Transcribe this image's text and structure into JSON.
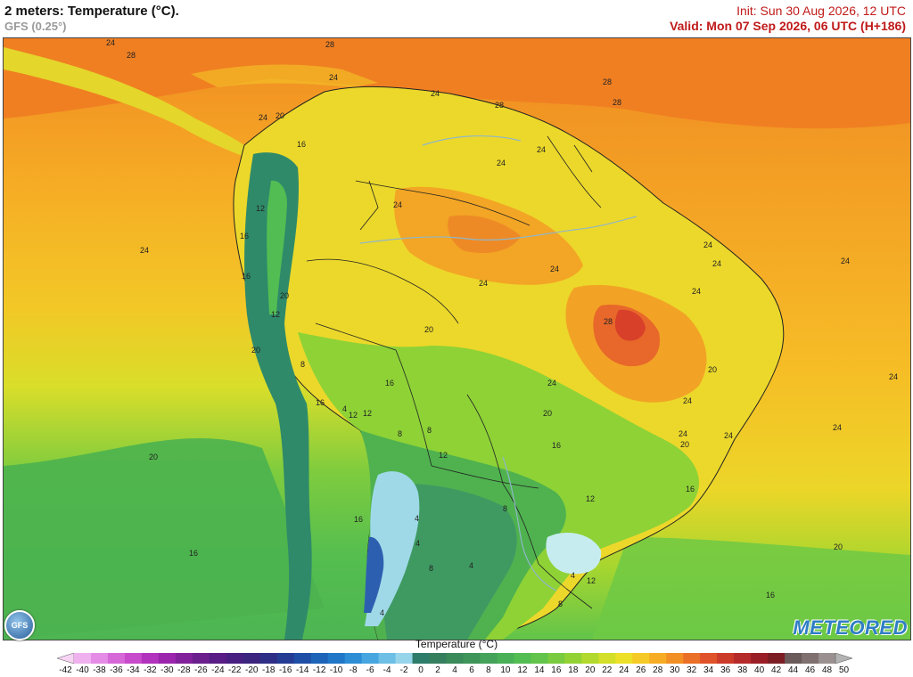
{
  "header": {
    "title": "2 meters: Temperature (°C).",
    "model": "GFS (0.25°)",
    "init": "Init: Sun 30 Aug 2026, 12 UTC",
    "valid": "Valid: Mon 07 Sep 2026, 06 UTC (H+186)"
  },
  "logos": {
    "gfs": "GFS",
    "brand": "METEORED"
  },
  "legend": {
    "title": "Temperature (°C)",
    "ticks": [
      "-42",
      "-40",
      "-38",
      "-36",
      "-34",
      "-32",
      "-30",
      "-28",
      "-26",
      "-24",
      "-22",
      "-20",
      "-18",
      "-16",
      "-14",
      "-12",
      "-10",
      "-8",
      "-6",
      "-4",
      "-2",
      "0",
      "2",
      "4",
      "6",
      "8",
      "10",
      "12",
      "14",
      "16",
      "18",
      "20",
      "22",
      "24",
      "26",
      "28",
      "30",
      "32",
      "34",
      "36",
      "38",
      "40",
      "42",
      "44",
      "46",
      "48",
      "50"
    ],
    "colors": [
      "#f7d4f4",
      "#efb2ee",
      "#e58de6",
      "#d768d8",
      "#c84bcb",
      "#b233bc",
      "#9b26ad",
      "#82219c",
      "#6a1f8d",
      "#581d86",
      "#482081",
      "#3c257e",
      "#2f2e86",
      "#243c93",
      "#1f4ea6",
      "#1d63b8",
      "#2077c8",
      "#2d8ed6",
      "#47a6e0",
      "#6dbfe6",
      "#97d5ea",
      "#2e7d6a",
      "#357f5f",
      "#3a8a5a",
      "#3f9559",
      "#44a25a",
      "#49b058",
      "#52bd52",
      "#62c44a",
      "#7acb3f",
      "#93d235",
      "#b2d92d",
      "#d3df28",
      "#ece028",
      "#f6ca26",
      "#f6ad25",
      "#f28f25",
      "#ea6f27",
      "#e05229",
      "#cc3a2a",
      "#b52a2a",
      "#9a1e26",
      "#7c1d24",
      "#6b5a5a",
      "#807070",
      "#9a9090",
      "#b3b3b3"
    ]
  },
  "map": {
    "ocean_sst_labels": [
      {
        "text": "28"
      },
      {
        "text": "28"
      },
      {
        "text": "28"
      },
      {
        "text": "28"
      },
      {
        "text": "28"
      },
      {
        "text": "24"
      },
      {
        "text": "24"
      },
      {
        "text": "24"
      },
      {
        "text": "24"
      },
      {
        "text": "24"
      },
      {
        "text": "20"
      },
      {
        "text": "20"
      },
      {
        "text": "20"
      },
      {
        "text": "16"
      },
      {
        "text": "16"
      },
      {
        "text": "16"
      },
      {
        "text": "12"
      }
    ],
    "land_labels": [
      {
        "text": "24"
      },
      {
        "text": "24"
      },
      {
        "text": "20"
      },
      {
        "text": "24"
      },
      {
        "text": "16"
      },
      {
        "text": "24"
      },
      {
        "text": "24"
      },
      {
        "text": "24"
      },
      {
        "text": "12"
      },
      {
        "text": "16"
      },
      {
        "text": "24"
      },
      {
        "text": "24"
      },
      {
        "text": "16"
      },
      {
        "text": "20"
      },
      {
        "text": "24"
      },
      {
        "text": "24"
      },
      {
        "text": "12"
      },
      {
        "text": "20"
      },
      {
        "text": "24"
      },
      {
        "text": "28"
      },
      {
        "text": "24"
      },
      {
        "text": "24"
      },
      {
        "text": "20"
      },
      {
        "text": "8"
      },
      {
        "text": "16"
      },
      {
        "text": "20"
      },
      {
        "text": "20"
      },
      {
        "text": "24"
      },
      {
        "text": "16"
      },
      {
        "text": "4"
      },
      {
        "text": "12"
      },
      {
        "text": "8"
      },
      {
        "text": "24"
      },
      {
        "text": "16"
      },
      {
        "text": "12"
      },
      {
        "text": "8"
      },
      {
        "text": "12"
      },
      {
        "text": "4"
      },
      {
        "text": "8"
      },
      {
        "text": "4"
      },
      {
        "text": "4"
      },
      {
        "text": "8"
      },
      {
        "text": "4"
      },
      {
        "text": "12"
      },
      {
        "text": "8"
      },
      {
        "text": "4"
      },
      {
        "text": "16"
      }
    ]
  }
}
